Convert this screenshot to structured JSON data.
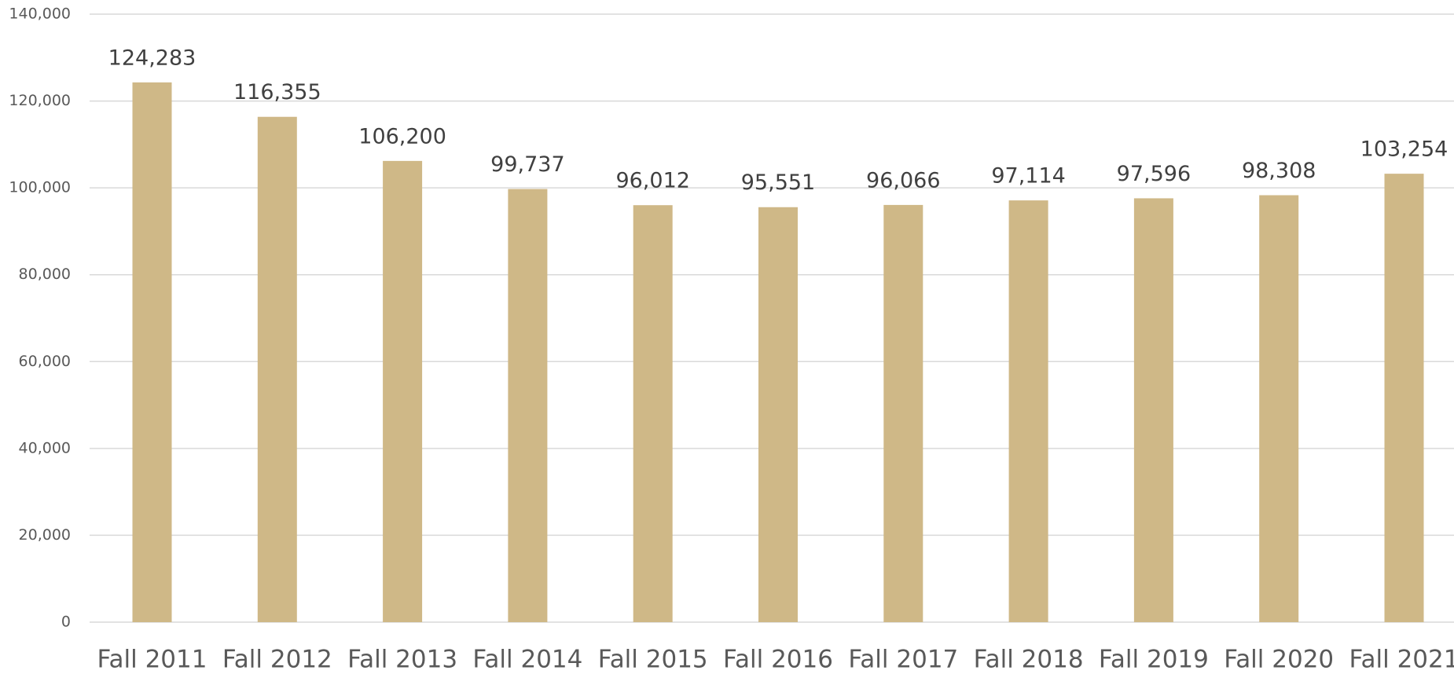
{
  "chart_data": {
    "type": "bar",
    "categories": [
      "Fall 2011",
      "Fall 2012",
      "Fall 2013",
      "Fall 2014",
      "Fall 2015",
      "Fall 2016",
      "Fall 2017",
      "Fall 2018",
      "Fall 2019",
      "Fall 2020",
      "Fall 2021"
    ],
    "values": [
      124283,
      116355,
      106200,
      99737,
      96012,
      95551,
      96066,
      97114,
      97596,
      98308,
      103254
    ],
    "value_labels": [
      "124,283",
      "116,355",
      "106,200",
      "99,737",
      "96,012",
      "95,551",
      "96,066",
      "97,114",
      "97,596",
      "98,308",
      "103,254"
    ],
    "color": "#cfb887",
    "ylim": [
      0,
      140000
    ],
    "yticks": [
      0,
      {
        "value": 20000,
        "label": "20,000"
      },
      {
        "value": 40000,
        "label": "40,000"
      },
      {
        "value": 60000,
        "label": "60,000"
      },
      {
        "value": 80000,
        "label": "80,000"
      },
      {
        "value": 100000,
        "label": "100,000"
      },
      {
        "value": 120000,
        "label": "120,000"
      },
      {
        "value": 140000,
        "label": "140,000"
      }
    ],
    "grid": true
  }
}
